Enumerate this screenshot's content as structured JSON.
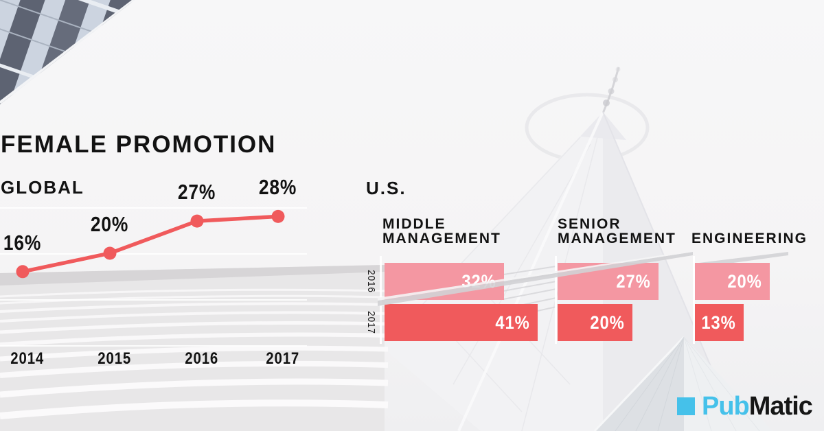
{
  "header": {
    "title": "FEMALE PROMOTION"
  },
  "line_chart": {
    "region_label": "GLOBAL",
    "points": [
      {
        "year": "2014",
        "value_label": "16%"
      },
      {
        "year": "2015",
        "value_label": "20%"
      },
      {
        "year": "2016",
        "value_label": "27%"
      },
      {
        "year": "2017",
        "value_label": "28%"
      }
    ]
  },
  "bar_chart": {
    "region_label": "U.S.",
    "year_rows": [
      "2016",
      "2017"
    ],
    "groups": [
      {
        "title_lines": [
          "MIDDLE",
          "MANAGEMENT"
        ],
        "bars": [
          {
            "year": "2016",
            "value_label": "32%"
          },
          {
            "year": "2017",
            "value_label": "41%"
          }
        ]
      },
      {
        "title_lines": [
          "SENIOR",
          "MANAGEMENT"
        ],
        "bars": [
          {
            "year": "2016",
            "value_label": "27%"
          },
          {
            "year": "2017",
            "value_label": "20%"
          }
        ]
      },
      {
        "title_lines": [
          "ENGINEERING"
        ],
        "bars": [
          {
            "year": "2016",
            "value_label": "20%"
          },
          {
            "year": "2017",
            "value_label": "13%"
          }
        ]
      }
    ]
  },
  "logo": {
    "part1": "Pub",
    "part2": "Matic"
  },
  "colors": {
    "accent_red": "#F05A5C",
    "accent_pink": "#F497A2",
    "logo_blue": "#45C1EA",
    "logo_dark": "#161616",
    "text_black": "#121212"
  },
  "chart_data": [
    {
      "type": "line",
      "title": "FEMALE PROMOTION — GLOBAL",
      "x": [
        "2014",
        "2015",
        "2016",
        "2017"
      ],
      "values": [
        16,
        20,
        27,
        28
      ],
      "unit": "%",
      "ylim": [
        0,
        35
      ],
      "grid": true,
      "color": "#F05A5C",
      "point_labels": [
        "16%",
        "20%",
        "27%",
        "28%"
      ]
    },
    {
      "type": "bar",
      "title": "FEMALE PROMOTION — U.S.",
      "orientation": "horizontal",
      "categories": [
        "MIDDLE MANAGEMENT",
        "SENIOR MANAGEMENT",
        "ENGINEERING"
      ],
      "series": [
        {
          "name": "2016",
          "values": [
            32,
            27,
            20
          ],
          "color": "#F497A2"
        },
        {
          "name": "2017",
          "values": [
            41,
            20,
            13
          ],
          "color": "#F05A5C"
        }
      ],
      "unit": "%",
      "legend_position": "left-rotated"
    }
  ]
}
